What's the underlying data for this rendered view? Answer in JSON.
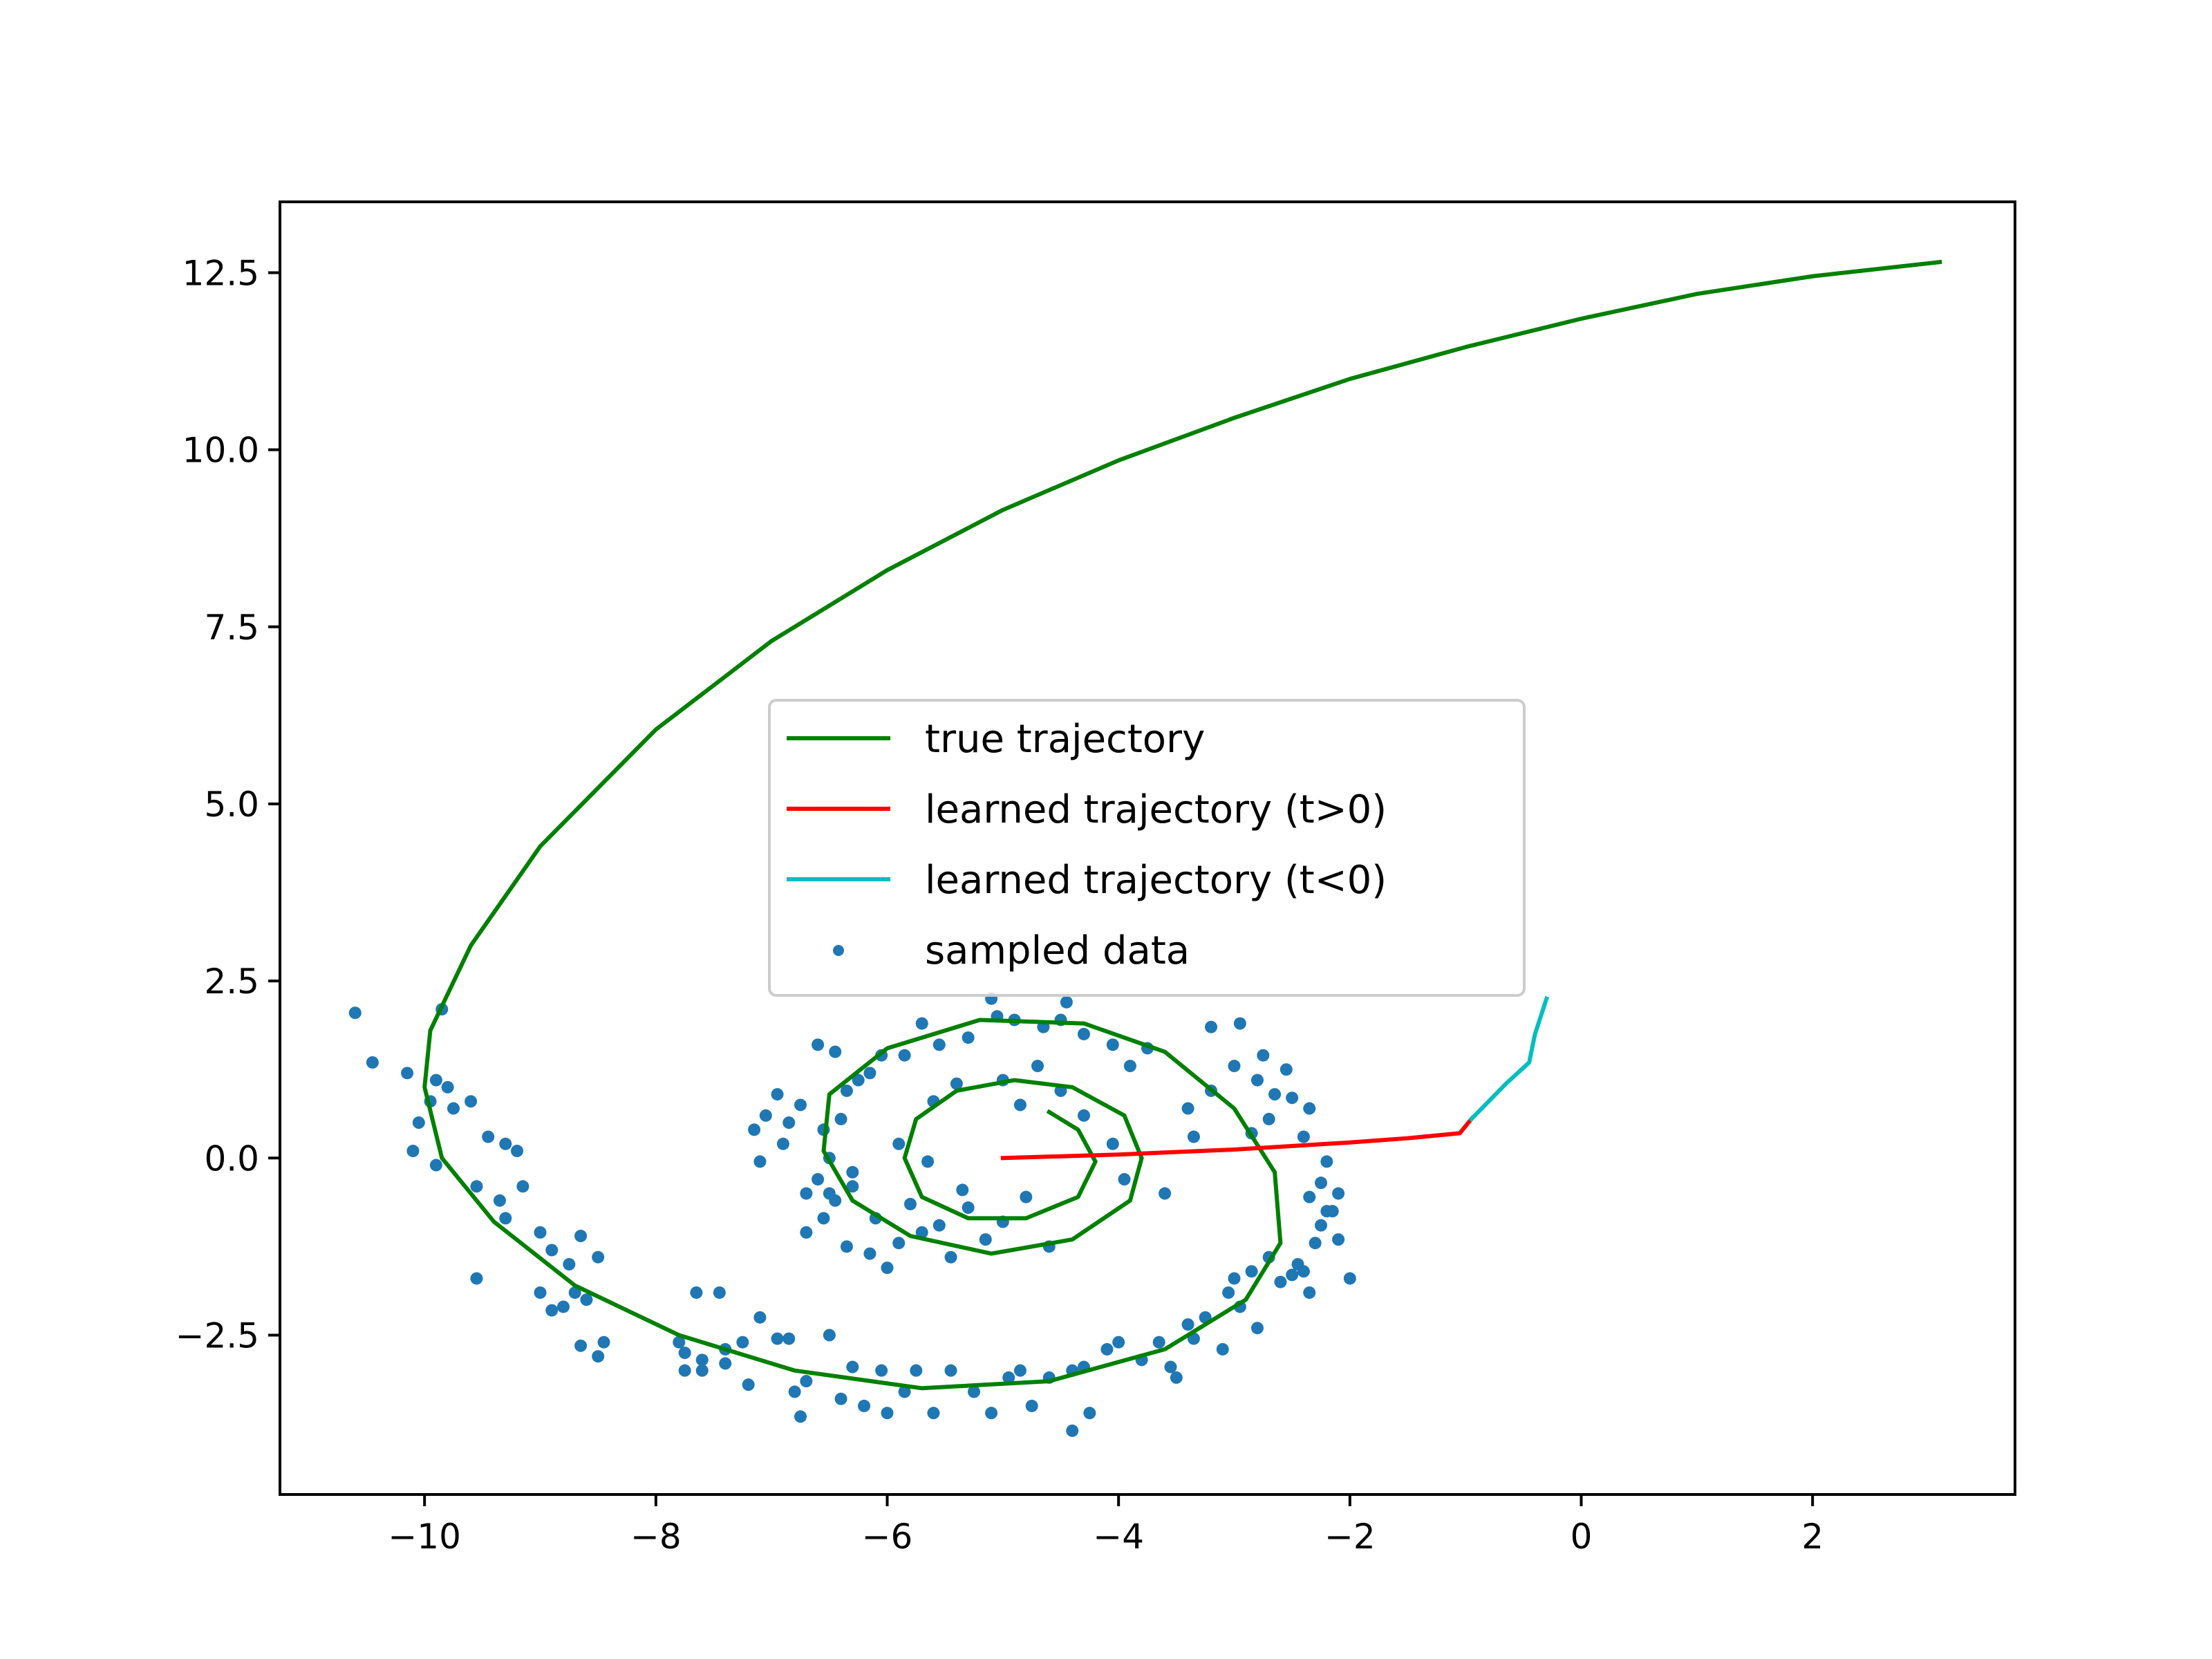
{
  "chart_data": {
    "type": "line",
    "xlim": [
      -11.25,
      3.75
    ],
    "ylim": [
      -4.75,
      13.5
    ],
    "x_ticks": [
      -10,
      -8,
      -6,
      -4,
      -2,
      0,
      2
    ],
    "x_tick_labels": [
      "−10",
      "−8",
      "−6",
      "−4",
      "−2",
      "0",
      "2"
    ],
    "y_ticks": [
      -2.5,
      0.0,
      2.5,
      5.0,
      7.5,
      10.0,
      12.5
    ],
    "y_tick_labels": [
      "−2.5",
      "0.0",
      "2.5",
      "5.0",
      "7.5",
      "10.0",
      "12.5"
    ],
    "grid": false,
    "legend_position": "center",
    "series": [
      {
        "name": "true trajectory",
        "kind": "line",
        "color": "#008000",
        "points": [
          [
            3.1,
            12.65
          ],
          [
            2.0,
            12.45
          ],
          [
            1.0,
            12.2
          ],
          [
            0.0,
            11.85
          ],
          [
            -1.0,
            11.45
          ],
          [
            -2.0,
            11.0
          ],
          [
            -3.0,
            10.45
          ],
          [
            -4.0,
            9.85
          ],
          [
            -5.0,
            9.15
          ],
          [
            -6.0,
            8.3
          ],
          [
            -7.0,
            7.3
          ],
          [
            -8.0,
            6.05
          ],
          [
            -9.0,
            4.4
          ],
          [
            -9.6,
            3.0
          ],
          [
            -9.95,
            1.8
          ],
          [
            -10.0,
            1.0
          ],
          [
            -9.85,
            0.0
          ],
          [
            -9.4,
            -0.9
          ],
          [
            -8.7,
            -1.8
          ],
          [
            -7.8,
            -2.5
          ],
          [
            -6.8,
            -3.0
          ],
          [
            -5.7,
            -3.25
          ],
          [
            -4.6,
            -3.15
          ],
          [
            -3.6,
            -2.7
          ],
          [
            -2.9,
            -2.0
          ],
          [
            -2.6,
            -1.2
          ],
          [
            -2.65,
            -0.2
          ],
          [
            -3.0,
            0.7
          ],
          [
            -3.6,
            1.5
          ],
          [
            -4.3,
            1.9
          ],
          [
            -5.2,
            1.95
          ],
          [
            -6.0,
            1.55
          ],
          [
            -6.5,
            0.9
          ],
          [
            -6.55,
            0.1
          ],
          [
            -6.3,
            -0.6
          ],
          [
            -5.8,
            -1.1
          ],
          [
            -5.1,
            -1.35
          ],
          [
            -4.4,
            -1.15
          ],
          [
            -3.9,
            -0.6
          ],
          [
            -3.8,
            0.0
          ],
          [
            -3.95,
            0.6
          ],
          [
            -4.4,
            1.0
          ],
          [
            -4.9,
            1.1
          ],
          [
            -5.4,
            0.95
          ],
          [
            -5.75,
            0.55
          ],
          [
            -5.85,
            0.0
          ],
          [
            -5.7,
            -0.55
          ],
          [
            -5.3,
            -0.85
          ],
          [
            -4.8,
            -0.85
          ],
          [
            -4.35,
            -0.55
          ],
          [
            -4.2,
            -0.05
          ],
          [
            -4.35,
            0.4
          ],
          [
            -4.6,
            0.65
          ]
        ]
      },
      {
        "name": "learned trajectory (t>0)",
        "kind": "line",
        "color": "#ff0000",
        "points": [
          [
            -5.0,
            0.0
          ],
          [
            -4.0,
            0.05
          ],
          [
            -3.0,
            0.12
          ],
          [
            -2.0,
            0.22
          ],
          [
            -1.5,
            0.28
          ],
          [
            -1.05,
            0.35
          ],
          [
            -0.95,
            0.55
          ]
        ]
      },
      {
        "name": "learned trajectory (t<0)",
        "kind": "line",
        "color": "#00bfbf",
        "points": [
          [
            -0.95,
            0.55
          ],
          [
            -0.8,
            0.8
          ],
          [
            -0.65,
            1.05
          ],
          [
            -0.45,
            1.35
          ],
          [
            -0.4,
            1.75
          ],
          [
            -0.3,
            2.25
          ]
        ]
      },
      {
        "name": "sampled data",
        "kind": "scatter",
        "color": "#1f77b4",
        "points": [
          [
            -10.6,
            2.05
          ],
          [
            -10.45,
            1.35
          ],
          [
            -10.15,
            1.2
          ],
          [
            -9.85,
            2.1
          ],
          [
            -9.9,
            1.1
          ],
          [
            -9.8,
            1.0
          ],
          [
            -9.95,
            0.8
          ],
          [
            -9.75,
            0.7
          ],
          [
            -10.05,
            0.5
          ],
          [
            -10.1,
            0.1
          ],
          [
            -9.9,
            -0.1
          ],
          [
            -9.6,
            0.8
          ],
          [
            -9.45,
            0.3
          ],
          [
            -9.3,
            0.2
          ],
          [
            -9.2,
            0.1
          ],
          [
            -9.55,
            -0.4
          ],
          [
            -9.35,
            -0.6
          ],
          [
            -9.15,
            -0.4
          ],
          [
            -9.3,
            -0.85
          ],
          [
            -9.55,
            -1.7
          ],
          [
            -9.0,
            -1.05
          ],
          [
            -8.9,
            -1.3
          ],
          [
            -8.75,
            -1.5
          ],
          [
            -8.7,
            -1.9
          ],
          [
            -8.5,
            -1.4
          ],
          [
            -8.65,
            -1.1
          ],
          [
            -9.0,
            -1.9
          ],
          [
            -8.9,
            -2.15
          ],
          [
            -8.8,
            -2.1
          ],
          [
            -8.6,
            -2.0
          ],
          [
            -8.45,
            -2.6
          ],
          [
            -8.65,
            -2.65
          ],
          [
            -8.5,
            -2.8
          ],
          [
            -7.8,
            -2.6
          ],
          [
            -7.75,
            -2.75
          ],
          [
            -7.6,
            -2.85
          ],
          [
            -7.75,
            -3.0
          ],
          [
            -7.6,
            -3.0
          ],
          [
            -7.4,
            -2.7
          ],
          [
            -7.4,
            -2.9
          ],
          [
            -7.25,
            -2.6
          ],
          [
            -7.65,
            -1.9
          ],
          [
            -7.45,
            -1.9
          ],
          [
            -7.1,
            -2.25
          ],
          [
            -7.2,
            -3.2
          ],
          [
            -6.95,
            -2.55
          ],
          [
            -6.85,
            -2.55
          ],
          [
            -6.5,
            -2.5
          ],
          [
            -6.7,
            -3.15
          ],
          [
            -6.8,
            -3.3
          ],
          [
            -6.75,
            -3.65
          ],
          [
            -6.4,
            -3.4
          ],
          [
            -6.3,
            -2.95
          ],
          [
            -6.2,
            -3.5
          ],
          [
            -6.05,
            -3.0
          ],
          [
            -6.0,
            -3.6
          ],
          [
            -5.85,
            -3.3
          ],
          [
            -5.75,
            -3.0
          ],
          [
            -5.6,
            -3.6
          ],
          [
            -5.45,
            -3.0
          ],
          [
            -5.25,
            -3.3
          ],
          [
            -5.1,
            -3.6
          ],
          [
            -4.95,
            -3.1
          ],
          [
            -4.85,
            -3.0
          ],
          [
            -4.75,
            -3.5
          ],
          [
            -4.6,
            -3.1
          ],
          [
            -4.4,
            -3.0
          ],
          [
            -4.3,
            -2.95
          ],
          [
            -4.4,
            -3.85
          ],
          [
            -4.25,
            -3.6
          ],
          [
            -4.1,
            -2.7
          ],
          [
            -4.0,
            -2.6
          ],
          [
            -3.8,
            -2.85
          ],
          [
            -3.65,
            -2.6
          ],
          [
            -3.55,
            -2.95
          ],
          [
            -3.5,
            -3.1
          ],
          [
            -3.4,
            -2.35
          ],
          [
            -3.35,
            -2.55
          ],
          [
            -3.25,
            -2.25
          ],
          [
            -3.1,
            -2.7
          ],
          [
            -3.05,
            -1.9
          ],
          [
            -3.0,
            -1.7
          ],
          [
            -2.95,
            -2.1
          ],
          [
            -2.85,
            -1.6
          ],
          [
            -2.8,
            -2.4
          ],
          [
            -2.7,
            -1.4
          ],
          [
            -2.6,
            -1.75
          ],
          [
            -2.5,
            -1.65
          ],
          [
            -2.45,
            -1.5
          ],
          [
            -2.4,
            -1.6
          ],
          [
            -2.35,
            -1.9
          ],
          [
            -2.3,
            -1.2
          ],
          [
            -2.25,
            -0.95
          ],
          [
            -2.2,
            -0.75
          ],
          [
            -2.15,
            -0.75
          ],
          [
            -2.1,
            -1.15
          ],
          [
            -2.0,
            -1.7
          ],
          [
            -2.35,
            -0.55
          ],
          [
            -2.25,
            -0.35
          ],
          [
            -2.1,
            -0.5
          ],
          [
            -2.2,
            -0.05
          ],
          [
            -2.4,
            0.3
          ],
          [
            -2.35,
            0.7
          ],
          [
            -2.5,
            0.85
          ],
          [
            -2.7,
            0.55
          ],
          [
            -2.85,
            0.35
          ],
          [
            -2.55,
            1.25
          ],
          [
            -2.8,
            1.1
          ],
          [
            -3.0,
            1.3
          ],
          [
            -3.2,
            0.95
          ],
          [
            -3.4,
            0.7
          ],
          [
            -3.35,
            0.3
          ],
          [
            -3.6,
            -0.5
          ],
          [
            -3.75,
            1.55
          ],
          [
            -3.9,
            1.3
          ],
          [
            -4.05,
            1.6
          ],
          [
            -4.3,
            1.75
          ],
          [
            -4.5,
            1.95
          ],
          [
            -4.65,
            1.85
          ],
          [
            -4.9,
            1.95
          ],
          [
            -5.05,
            2.0
          ],
          [
            -5.1,
            2.25
          ],
          [
            -5.3,
            1.7
          ],
          [
            -5.55,
            1.6
          ],
          [
            -5.7,
            1.9
          ],
          [
            -5.85,
            1.45
          ],
          [
            -6.05,
            1.45
          ],
          [
            -6.15,
            1.2
          ],
          [
            -6.25,
            1.1
          ],
          [
            -6.35,
            0.95
          ],
          [
            -6.45,
            1.5
          ],
          [
            -6.6,
            1.6
          ],
          [
            -6.75,
            0.75
          ],
          [
            -6.85,
            0.5
          ],
          [
            -7.05,
            0.6
          ],
          [
            -7.15,
            0.4
          ],
          [
            -6.9,
            0.2
          ],
          [
            -6.55,
            0.4
          ],
          [
            -6.4,
            0.55
          ],
          [
            -6.5,
            0.0
          ],
          [
            -6.3,
            -0.2
          ],
          [
            -6.3,
            -0.4
          ],
          [
            -6.45,
            -0.6
          ],
          [
            -6.55,
            -0.85
          ],
          [
            -6.7,
            -1.05
          ],
          [
            -6.35,
            -1.25
          ],
          [
            -6.15,
            -1.35
          ],
          [
            -6.0,
            -1.55
          ],
          [
            -5.9,
            -1.2
          ],
          [
            -5.7,
            -1.05
          ],
          [
            -5.55,
            -0.95
          ],
          [
            -5.3,
            -0.7
          ],
          [
            -5.15,
            -1.15
          ],
          [
            -5.0,
            -0.9
          ],
          [
            -4.8,
            -0.55
          ],
          [
            -4.6,
            -1.25
          ],
          [
            -5.35,
            -0.45
          ],
          [
            -5.65,
            -0.05
          ],
          [
            -5.9,
            0.2
          ],
          [
            -5.6,
            0.8
          ],
          [
            -5.4,
            1.05
          ],
          [
            -5.0,
            1.1
          ],
          [
            -4.85,
            0.75
          ],
          [
            -4.5,
            0.95
          ],
          [
            -4.3,
            0.6
          ],
          [
            -4.05,
            0.2
          ],
          [
            -3.95,
            -0.3
          ],
          [
            -6.95,
            0.9
          ],
          [
            -7.1,
            -0.05
          ],
          [
            -6.6,
            -0.3
          ],
          [
            -6.5,
            -0.5
          ],
          [
            -6.7,
            -0.5
          ],
          [
            -5.45,
            -1.4
          ],
          [
            -6.1,
            -0.85
          ],
          [
            -5.8,
            -0.65
          ],
          [
            -4.7,
            1.3
          ],
          [
            -4.45,
            2.2
          ],
          [
            -3.2,
            1.85
          ],
          [
            -2.95,
            1.9
          ],
          [
            -2.75,
            1.45
          ],
          [
            -2.65,
            0.9
          ]
        ]
      }
    ]
  }
}
